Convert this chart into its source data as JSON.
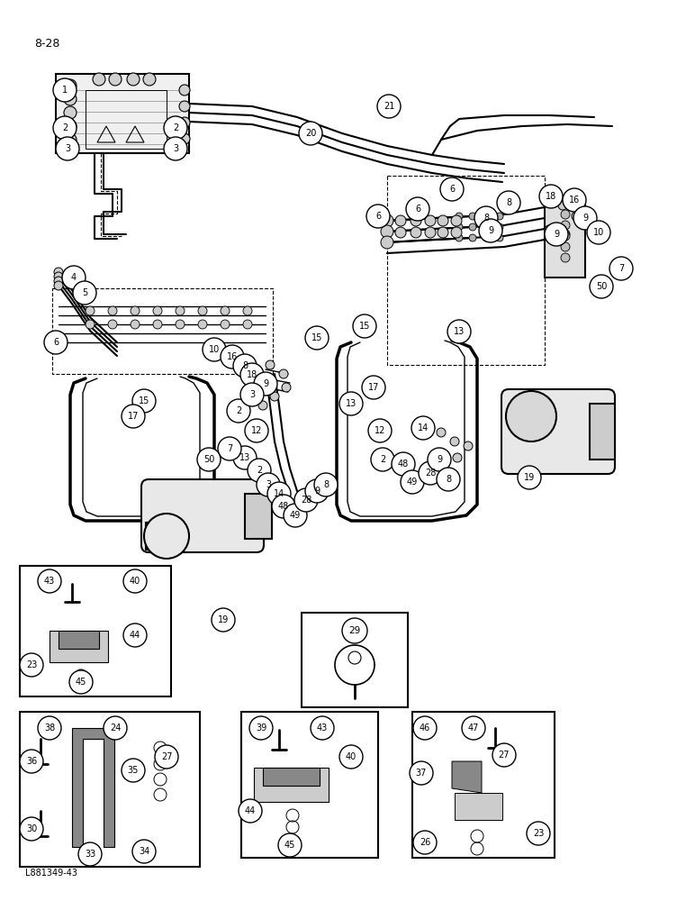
{
  "page_label": "8-28",
  "footer_label": "L881349-43",
  "bg_color": "#ffffff",
  "figsize": [
    7.72,
    10.0
  ],
  "dpi": 100
}
